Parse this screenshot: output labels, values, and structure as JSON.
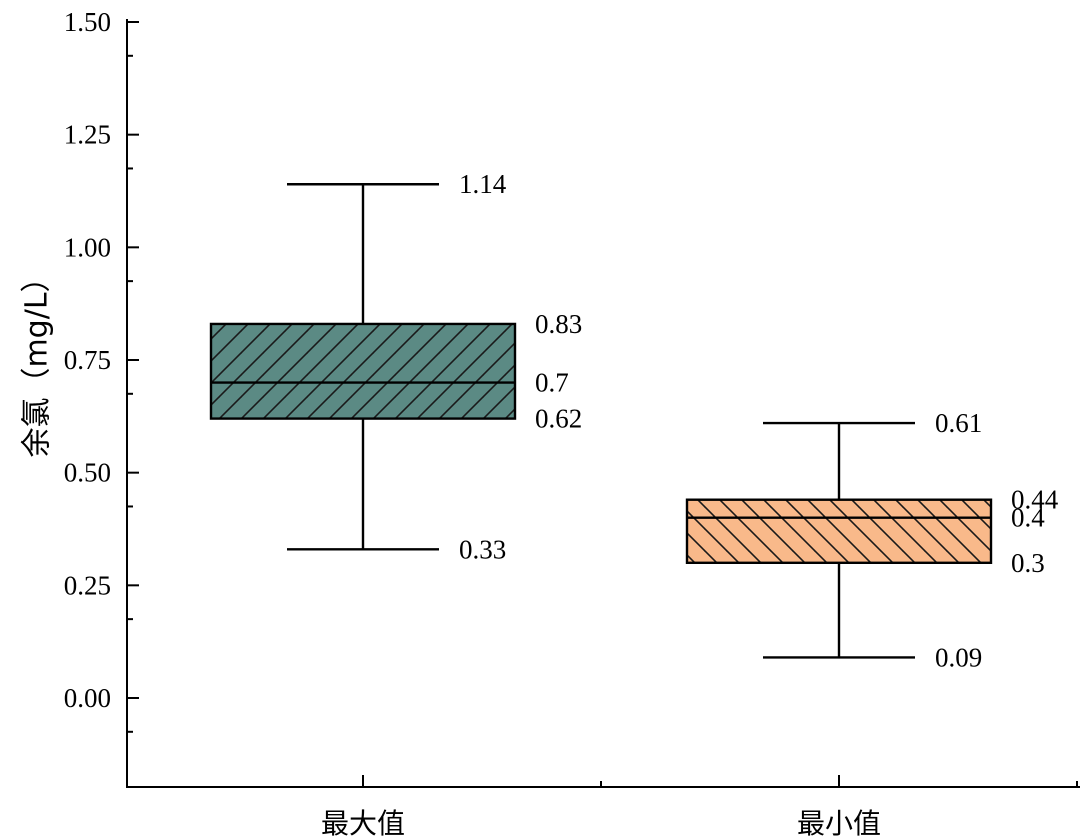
{
  "chart_data": {
    "type": "box",
    "title": "",
    "xlabel": "",
    "ylabel": "余氯（mg/L）",
    "ylim": [
      -0.2,
      1.5
    ],
    "yticks": [
      "0.00",
      "0.25",
      "0.50",
      "0.75",
      "1.00",
      "1.25",
      "1.50"
    ],
    "ytick_values": [
      0,
      0.25,
      0.5,
      0.75,
      1.0,
      1.25,
      1.5
    ],
    "grid": false,
    "categories": [
      "最大值",
      "最小值"
    ],
    "boxes": [
      {
        "category": "最大值",
        "whisker_high": 1.14,
        "q3": 0.83,
        "median": 0.7,
        "q1": 0.62,
        "whisker_low": 0.33,
        "labels": {
          "whisker_high": "1.14",
          "q3": "0.83",
          "median": "0.7",
          "q1": "0.62",
          "whisker_low": "0.33"
        },
        "fill": "#5b8a84",
        "hatch": "forward-diagonal"
      },
      {
        "category": "最小值",
        "whisker_high": 0.61,
        "q3": 0.44,
        "median": 0.4,
        "q1": 0.3,
        "whisker_low": 0.09,
        "labels": {
          "whisker_high": "0.61",
          "q3": "0.44",
          "median": "0.4",
          "q1": "0.3",
          "whisker_low": "0.09"
        },
        "fill": "#f9b98a",
        "hatch": "back-diagonal"
      }
    ]
  }
}
